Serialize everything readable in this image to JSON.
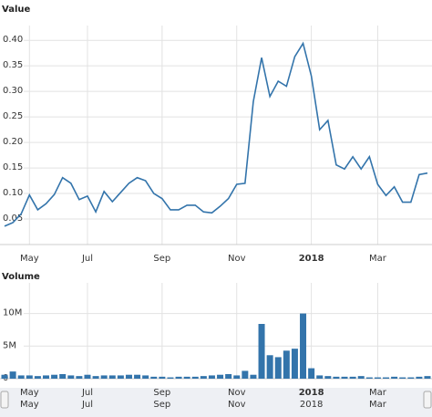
{
  "chart_data": [
    {
      "type": "line",
      "title": "Value",
      "color": "#3374ab",
      "grid": true,
      "categories": [
        null,
        null,
        null,
        "May",
        null,
        null,
        null,
        null,
        null,
        null,
        "Jul",
        null,
        null,
        null,
        null,
        null,
        null,
        null,
        null,
        "Sep",
        null,
        null,
        null,
        null,
        null,
        null,
        null,
        null,
        "Nov",
        null,
        null,
        null,
        null,
        null,
        null,
        null,
        null,
        "2018",
        null,
        null,
        null,
        null,
        null,
        null,
        null,
        "Mar",
        null,
        null,
        null,
        null,
        null,
        null
      ],
      "values": [
        0.036,
        0.043,
        0.06,
        0.097,
        0.068,
        0.08,
        0.098,
        0.131,
        0.12,
        0.088,
        0.095,
        0.064,
        0.104,
        0.084,
        0.102,
        0.12,
        0.131,
        0.125,
        0.1,
        0.09,
        0.068,
        0.068,
        0.077,
        0.077,
        0.064,
        0.062,
        0.075,
        0.09,
        0.118,
        0.12,
        0.28,
        0.366,
        0.29,
        0.32,
        0.31,
        0.368,
        0.394,
        0.33,
        0.225,
        0.243,
        0.156,
        0.148,
        0.172,
        0.148,
        0.172,
        0.118,
        0.096,
        0.113,
        0.083,
        0.083,
        0.137,
        0.14
      ],
      "ylim": [
        0,
        0.42
      ],
      "yticks": [
        {
          "value": 0.05,
          "label": "0.05"
        },
        {
          "value": 0.1,
          "label": "0.10"
        },
        {
          "value": 0.15,
          "label": "0.15"
        },
        {
          "value": 0.2,
          "label": "0.20"
        },
        {
          "value": 0.25,
          "label": "0.25"
        },
        {
          "value": 0.3,
          "label": "0.30"
        },
        {
          "value": 0.35,
          "label": "0.35"
        },
        {
          "value": 0.4,
          "label": "0.40"
        }
      ]
    },
    {
      "type": "bar",
      "title": "Volume",
      "color": "#3374ab",
      "grid": true,
      "values": [
        600000,
        1100000,
        500000,
        500000,
        400000,
        500000,
        600000,
        700000,
        500000,
        400000,
        600000,
        400000,
        500000,
        500000,
        500000,
        600000,
        600000,
        500000,
        300000,
        300000,
        200000,
        300000,
        300000,
        300000,
        400000,
        500000,
        600000,
        700000,
        500000,
        1200000,
        600000,
        8400000,
        3600000,
        3300000,
        4300000,
        4600000,
        10000000,
        1600000,
        500000,
        400000,
        300000,
        300000,
        300000,
        400000,
        200000,
        200000,
        200000,
        300000,
        200000,
        200000,
        300000,
        400000
      ],
      "ylim": [
        0,
        14000000
      ],
      "yticks": [
        0,
        {
          "value": 5000000,
          "label": "5M"
        },
        {
          "value": 10000000,
          "label": "10M"
        }
      ]
    }
  ]
}
